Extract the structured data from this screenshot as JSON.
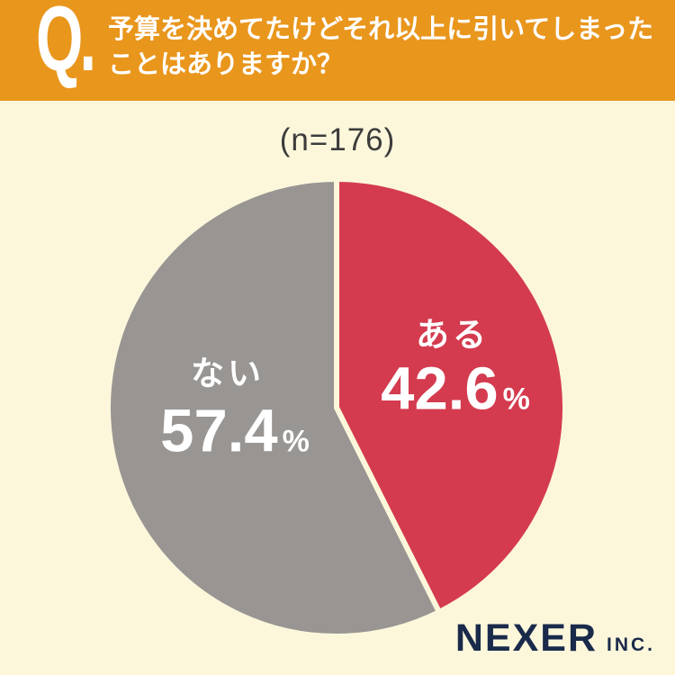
{
  "header": {
    "q_mark": "Q.",
    "question_line1": "予算を決めてたけどそれ以上に引いてしまった",
    "question_line2": "ことはありますか？"
  },
  "chart_data": {
    "type": "pie",
    "title": "(n=176)",
    "sample_size": 176,
    "categories": [
      "ある",
      "ない"
    ],
    "values": [
      42.6,
      57.4
    ],
    "unit": "%",
    "colors": [
      "#D43B4F",
      "#989593"
    ],
    "separator_color": "#FCF7DB",
    "start_angle_deg": -90,
    "direction": "clockwise",
    "legend_position": "inside-slices",
    "labels": [
      {
        "name": "ある",
        "value": "42.6",
        "unit": "%"
      },
      {
        "name": "ない",
        "value": "57.4",
        "unit": "%"
      }
    ]
  },
  "footer": {
    "brand": "NEXER",
    "brand_suffix": "INC."
  },
  "colors": {
    "header_bg": "#E9961D",
    "page_bg": "#FCF7DB",
    "slice_aru": "#D43B4F",
    "slice_nai": "#989593",
    "brand_navy": "#1A2A4A",
    "sample_text": "#3C3C3C",
    "header_text": "#FFFFFF",
    "slice_label_text": "#FFFFFF"
  }
}
